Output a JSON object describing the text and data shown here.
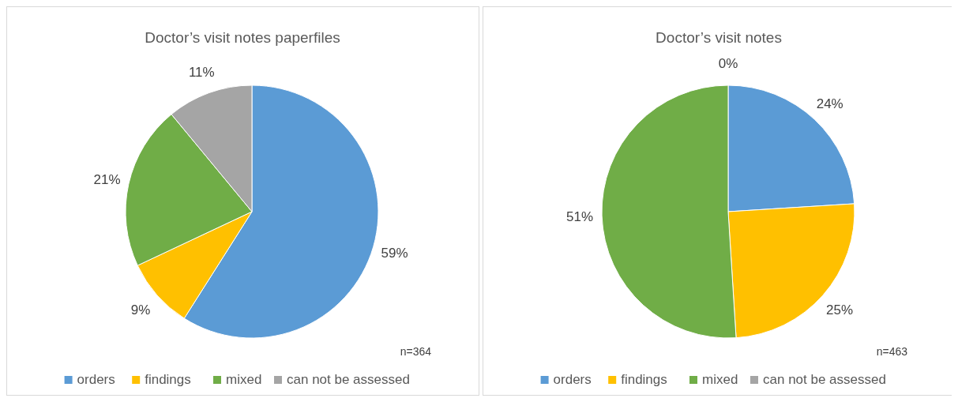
{
  "chart_data": [
    {
      "type": "pie",
      "title": "Doctor’s visit notes paperfiles",
      "categories": [
        "orders",
        "findings",
        "mixed",
        "can not be assessed"
      ],
      "values": [
        59,
        9,
        21,
        11
      ],
      "value_labels": [
        "59%",
        "9%",
        "21%",
        "11%"
      ],
      "colors": [
        "#5b9bd5",
        "#ffc000",
        "#70ad47",
        "#a5a5a5"
      ],
      "legend": "bottom",
      "annotations": [
        "n=364"
      ]
    },
    {
      "type": "pie",
      "title": "Doctor’s visit notes",
      "categories": [
        "orders",
        "findings",
        "mixed",
        "can not be assessed"
      ],
      "values": [
        24,
        25,
        51,
        0
      ],
      "value_labels": [
        "24%",
        "25%",
        "51%",
        "0%"
      ],
      "colors": [
        "#5b9bd5",
        "#ffc000",
        "#70ad47",
        "#a5a5a5"
      ],
      "legend": "bottom",
      "annotations": [
        "n=463"
      ]
    }
  ]
}
